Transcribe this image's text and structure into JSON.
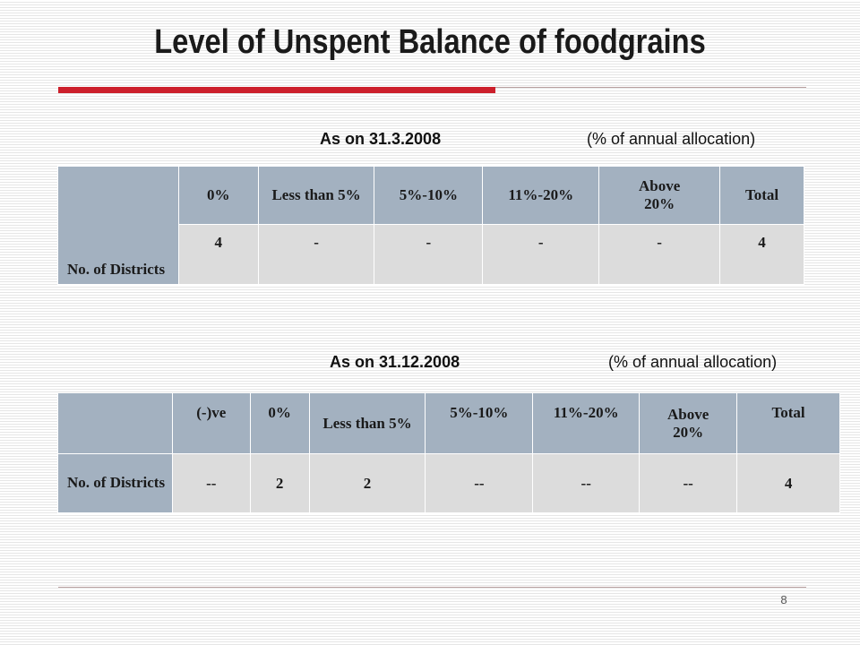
{
  "title": "Level of Unspent Balance of foodgrains",
  "page_number": "8",
  "table1": {
    "date_label": "As on 31.3.2008",
    "note": "(% of annual allocation)",
    "row_label": "No. of Districts",
    "headers": [
      "0%",
      "Less than 5%",
      "5%-10%",
      "11%-20%",
      "Above 20%",
      "Total"
    ],
    "values": [
      "4",
      "-",
      "-",
      "-",
      "-",
      "4"
    ]
  },
  "table2": {
    "date_label": "As on 31.12.2008",
    "note": "(% of annual allocation)",
    "row_label": "No. of Districts",
    "headers": [
      "(-)ve",
      "0%",
      "Less than 5%",
      "5%-10%",
      "11%-20%",
      "Above 20%",
      "Total"
    ],
    "values": [
      "--",
      "2",
      "2",
      "--",
      "--",
      "--",
      "4"
    ]
  },
  "colors": {
    "accent": "#cc1f2b",
    "header_fill": "#a3b1c0",
    "cell_fill": "#dcdcdc"
  }
}
